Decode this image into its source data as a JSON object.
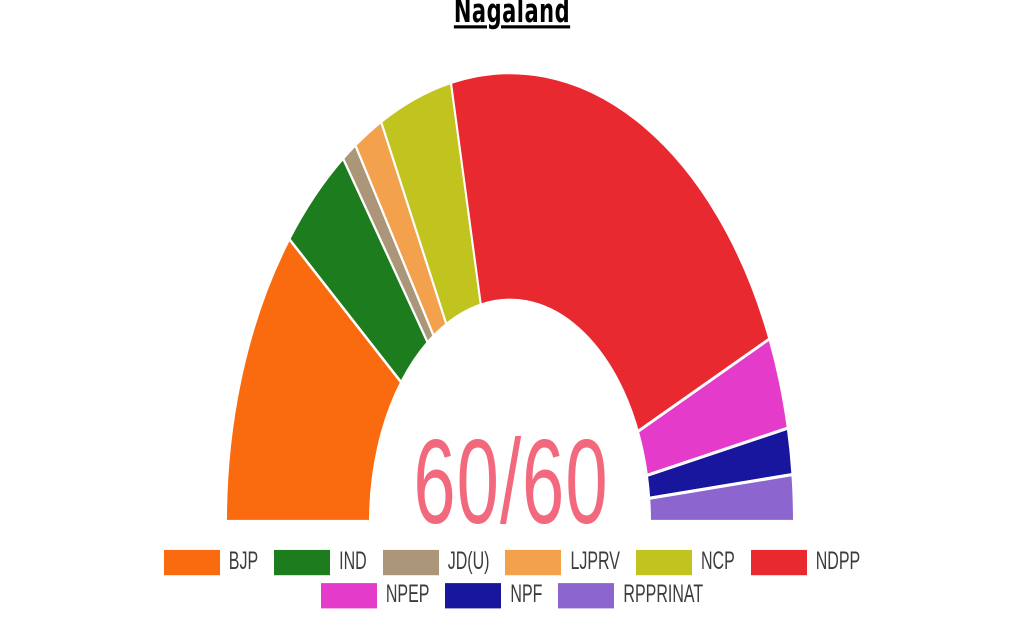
{
  "page": {
    "background_color": "#FFFFFF"
  },
  "chart_data": {
    "type": "pie",
    "variant": "half-donut-parliament-arch",
    "title": "Nagaland",
    "center_label": "60/60",
    "center_label_color": "#F2697E",
    "total_seats": 60,
    "seats_declared": 60,
    "start_angle_deg": 180,
    "end_angle_deg": 0,
    "segment_border_color": "#FFFFFF",
    "legend_position": "bottom",
    "series": [
      {
        "name": "BJP",
        "seats": 13,
        "color": "#FA6A0E"
      },
      {
        "name": "IND",
        "seats": 5,
        "color": "#1D7C1D"
      },
      {
        "name": "JD(U)",
        "seats": 1,
        "color": "#AC9679"
      },
      {
        "name": "LJPRV",
        "seats": 2,
        "color": "#F3A14C"
      },
      {
        "name": "NCP",
        "seats": 5,
        "color": "#C1C31F"
      },
      {
        "name": "NDPP",
        "seats": 26,
        "color": "#E8292F"
      },
      {
        "name": "NPEP",
        "seats": 4,
        "color": "#E43BCB"
      },
      {
        "name": "NPF",
        "seats": 2,
        "color": "#17169C"
      },
      {
        "name": "RPPRINAT",
        "seats": 2,
        "color": "#8C65CF"
      }
    ],
    "legend_rows": [
      [
        "BJP",
        "IND",
        "JD(U)",
        "LJPRV",
        "NCP",
        "NDPP"
      ],
      [
        "NPEP",
        "NPF",
        "RPPRINAT"
      ]
    ]
  }
}
